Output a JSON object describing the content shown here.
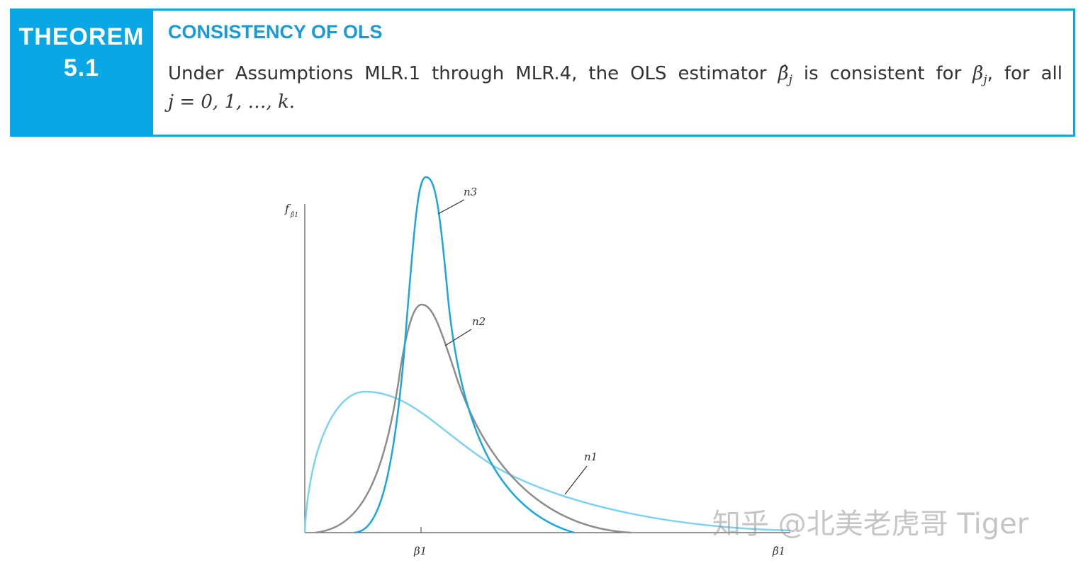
{
  "theorem": {
    "label": "THEOREM",
    "number": "5.1",
    "title": "CONSISTENCY OF OLS",
    "text": [
      "Under Assumptions MLR.1 through MLR.4, the OLS estimator ",
      "β̂",
      "j",
      " is consistent for ",
      "β",
      "j",
      ", for all",
      "j = 0, 1, …, k."
    ]
  },
  "figure": {
    "y_axis_label": "f",
    "y_axis_sub": "β̂1",
    "x_labels": [
      "β1",
      "β̂1"
    ],
    "curves": [
      "n3",
      "n2",
      "n1"
    ]
  },
  "watermark": "知乎 @北美老虎哥 Tiger"
}
